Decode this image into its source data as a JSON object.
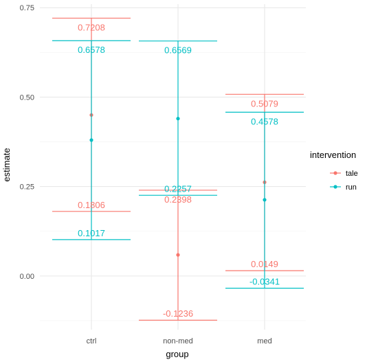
{
  "chart_data": {
    "type": "errorbar",
    "xlabel": "group",
    "ylabel": "estimate",
    "categories": [
      "ctrl",
      "non-med",
      "med"
    ],
    "ylim": [
      -0.15,
      0.76
    ],
    "yticks": [
      0.0,
      0.25,
      0.5,
      0.75
    ],
    "ytick_labels": [
      "0.00",
      "0.25",
      "0.50",
      "0.75"
    ],
    "legend": {
      "title": "intervention",
      "position": "right"
    },
    "grid": true,
    "series": [
      {
        "name": "tale",
        "color": "#F8766D",
        "points": [
          {
            "group": "ctrl",
            "estimate": 0.45,
            "lower": 0.1806,
            "upper": 0.7208,
            "lower_label": "0.1806",
            "upper_label": "0.7208"
          },
          {
            "group": "non-med",
            "estimate": 0.059,
            "lower": -0.1236,
            "upper": 0.2398,
            "lower_label": "-0.1236",
            "upper_label": "0.2398"
          },
          {
            "group": "med",
            "estimate": 0.262,
            "lower": 0.0149,
            "upper": 0.5079,
            "lower_label": "0.0149",
            "upper_label": "0.5079"
          }
        ]
      },
      {
        "name": "run",
        "color": "#00BFC4",
        "points": [
          {
            "group": "ctrl",
            "estimate": 0.38,
            "lower": 0.1017,
            "upper": 0.6578,
            "lower_label": "0.1017",
            "upper_label": "0.6578"
          },
          {
            "group": "non-med",
            "estimate": 0.44,
            "lower": 0.2257,
            "upper": 0.6569,
            "lower_label": "0.2257",
            "upper_label": "0.6569"
          },
          {
            "group": "med",
            "estimate": 0.213,
            "lower": -0.0341,
            "upper": 0.4578,
            "lower_label": "-0.0341",
            "upper_label": "0.4578"
          }
        ]
      }
    ]
  }
}
